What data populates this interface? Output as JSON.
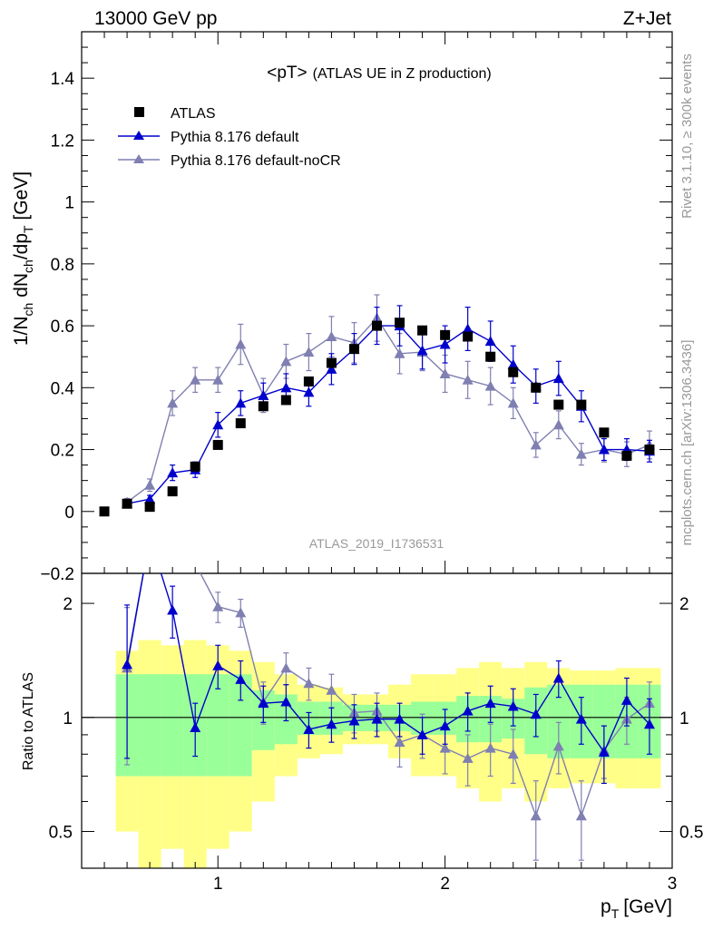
{
  "header": {
    "energy_label": "13000 GeV pp",
    "process_label": "Z+Jet"
  },
  "side_labels": {
    "rivet": "Rivet 3.1.10, ≥ 300k events",
    "mcplots": "mcplots.cern.ch [arXiv:1306.3436]"
  },
  "colors": {
    "data": "#000000",
    "default": "#0000cc",
    "nocr": "#7f7fb2",
    "band_inner": "#99ff99",
    "band_outer": "#ffff88"
  },
  "chart_data": {
    "type": "scatter",
    "title": "<pT>",
    "subtitle": "(ATLAS UE in Z production)",
    "analysis_id": "ATLAS_2019_I1736531",
    "xlabel_main": "p",
    "xlabel_sub": "T",
    "xlabel_unit": "[GeV]",
    "ylabel": {
      "p1": "1/N",
      "s1": "ch",
      "p2": " dN",
      "s2": "ch",
      "p3": "/dp",
      "s3": "T",
      "p4": " [GeV]"
    },
    "ratio_ylabel": "Ratio to ATLAS",
    "xlim": [
      0.4,
      3.0
    ],
    "ylim": [
      -0.2,
      1.55
    ],
    "ratio_ylim": [
      0.4,
      2.4
    ],
    "x_ticks": [
      {
        "value": 1,
        "label": "1"
      },
      {
        "value": 2,
        "label": "2"
      },
      {
        "value": 3,
        "label": "3"
      }
    ],
    "y_ticks": [
      {
        "value": -0.2,
        "label": "−0.2"
      },
      {
        "value": 0,
        "label": "0"
      },
      {
        "value": 0.2,
        "label": "0.2"
      },
      {
        "value": 0.4,
        "label": "0.4"
      },
      {
        "value": 0.6,
        "label": "0.6"
      },
      {
        "value": 0.8,
        "label": "0.8"
      },
      {
        "value": 1.0,
        "label": "1"
      },
      {
        "value": 1.2,
        "label": "1.2"
      },
      {
        "value": 1.4,
        "label": "1.4"
      }
    ],
    "ratio_ticks": [
      {
        "value": 0.5,
        "label": "0.5"
      },
      {
        "value": 1,
        "label": "1"
      },
      {
        "value": 2,
        "label": "2"
      }
    ],
    "x": [
      0.5,
      0.6,
      0.7,
      0.8,
      0.9,
      1.0,
      1.1,
      1.2,
      1.3,
      1.4,
      1.5,
      1.6,
      1.7,
      1.8,
      1.9,
      2.0,
      2.1,
      2.2,
      2.3,
      2.4,
      2.5,
      2.6,
      2.7,
      2.8,
      2.9
    ],
    "ratio_band_from_index": 1,
    "series": [
      {
        "name": "ATLAS",
        "marker": "square",
        "values": [
          0.0,
          0.025,
          0.015,
          0.065,
          0.145,
          0.215,
          0.285,
          0.34,
          0.36,
          0.42,
          0.48,
          0.525,
          0.6,
          0.61,
          0.585,
          0.57,
          0.565,
          0.5,
          0.45,
          0.4,
          0.345,
          0.345,
          0.255,
          0.18,
          0.2
        ],
        "ratio_band_inner": [
          0.3,
          0.3,
          0.3,
          0.3,
          0.3,
          0.3,
          0.3,
          0.18,
          0.15,
          0.1,
          0.1,
          0.08,
          0.08,
          0.08,
          0.1,
          0.1,
          0.14,
          0.14,
          0.12,
          0.2,
          0.22,
          0.22,
          0.22,
          0.22,
          0.22
        ],
        "ratio_band_outer": [
          0.45,
          0.5,
          0.6,
          0.55,
          0.6,
          0.55,
          0.5,
          0.4,
          0.3,
          0.22,
          0.2,
          0.15,
          0.15,
          0.22,
          0.3,
          0.3,
          0.35,
          0.4,
          0.35,
          0.4,
          0.35,
          0.33,
          0.33,
          0.35,
          0.35
        ]
      },
      {
        "name": "Pythia 8.176 default",
        "marker": "triangle",
        "values": [
          null,
          0.025,
          0.04,
          0.125,
          0.135,
          0.28,
          0.35,
          0.375,
          0.4,
          0.385,
          0.46,
          0.525,
          0.6,
          0.6,
          0.52,
          0.54,
          0.59,
          0.55,
          0.475,
          0.405,
          0.43,
          0.34,
          0.2,
          0.2,
          0.195
        ],
        "errors": [
          null,
          0.01,
          0.012,
          0.025,
          0.025,
          0.04,
          0.04,
          0.04,
          0.045,
          0.045,
          0.05,
          0.05,
          0.06,
          0.065,
          0.06,
          0.06,
          0.07,
          0.065,
          0.06,
          0.055,
          0.055,
          0.05,
          0.035,
          0.035,
          0.035
        ],
        "ratio": [
          null,
          1.38,
          3.3,
          1.92,
          0.94,
          1.37,
          1.26,
          1.09,
          1.1,
          0.93,
          0.96,
          0.98,
          0.99,
          0.99,
          0.9,
          0.95,
          1.04,
          1.09,
          1.07,
          1.02,
          1.27,
          0.99,
          0.81,
          1.11,
          0.96
        ],
        "ratio_errors": [
          null,
          0.6,
          0.9,
          0.3,
          0.15,
          0.18,
          0.15,
          0.12,
          0.12,
          0.1,
          0.1,
          0.1,
          0.1,
          0.1,
          0.1,
          0.1,
          0.12,
          0.12,
          0.12,
          0.13,
          0.14,
          0.14,
          0.14,
          0.16,
          0.16
        ]
      },
      {
        "name": "Pythia 8.176 default-noCR",
        "marker": "triangle",
        "values": [
          null,
          0.03,
          0.085,
          0.35,
          0.425,
          0.425,
          0.54,
          0.375,
          0.485,
          0.515,
          0.565,
          0.545,
          0.625,
          0.51,
          0.515,
          0.445,
          0.425,
          0.405,
          0.35,
          0.215,
          0.28,
          0.185,
          0.2,
          0.185,
          0.215
        ],
        "errors": [
          null,
          0.012,
          0.02,
          0.04,
          0.04,
          0.04,
          0.065,
          0.055,
          0.055,
          0.06,
          0.065,
          0.065,
          0.075,
          0.065,
          0.06,
          0.06,
          0.06,
          0.06,
          0.05,
          0.04,
          0.045,
          0.035,
          0.04,
          0.04,
          0.045
        ],
        "ratio": [
          null,
          1.35,
          5.5,
          3.2,
          2.55,
          1.96,
          1.89,
          1.1,
          1.35,
          1.23,
          1.18,
          1.03,
          1.04,
          0.86,
          0.9,
          0.83,
          0.78,
          0.83,
          0.8,
          0.55,
          0.84,
          0.55,
          0.82,
          0.99,
          1.09
        ],
        "ratio_errors": [
          null,
          0.6,
          0.9,
          0.3,
          0.2,
          0.18,
          0.16,
          0.14,
          0.13,
          0.12,
          0.12,
          0.12,
          0.12,
          0.12,
          0.12,
          0.12,
          0.12,
          0.13,
          0.13,
          0.13,
          0.13,
          0.13,
          0.13,
          0.14,
          0.15
        ]
      }
    ]
  }
}
